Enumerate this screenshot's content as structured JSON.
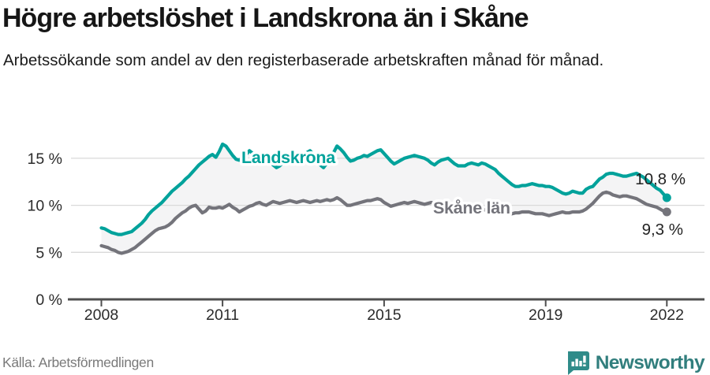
{
  "header": {
    "title": "Högre arbetslöshet i Landskrona än i Skåne",
    "subtitle": "Arbetssökande som andel av den registerbaserade arbetskraften månad för månad."
  },
  "footer": {
    "source": "Källa: Arbetsförmedlingen",
    "brand": "Newsworthy"
  },
  "colors": {
    "landskrona": "#00a29b",
    "skane": "#74747b",
    "fill_between": "#f4f4f5",
    "gridline": "#d9d9d9",
    "axis": "#4f4f4f",
    "tick_text": "#2b2b2b",
    "value_text": "#232323",
    "brand_teal": "#2f8b89"
  },
  "chart_data": {
    "type": "line",
    "x_start": "2008-01",
    "x_interval": "monthly",
    "x_tick_years": [
      2008,
      2011,
      2015,
      2019,
      2022
    ],
    "x_tick_labels": [
      "2008",
      "2011",
      "2015",
      "2019",
      "2022"
    ],
    "y_ticks": [
      0,
      5,
      10,
      15
    ],
    "y_tick_labels": [
      "0 %",
      "5 %",
      "10 %",
      "15 %"
    ],
    "ylim": [
      0,
      17.6
    ],
    "grid": true,
    "legend": "inline-labels",
    "fill_between_series": true,
    "series": [
      {
        "name": "Landskrona",
        "color": "#00a29b",
        "end_value_label": "10,8 %",
        "values": [
          7.6,
          7.5,
          7.3,
          7.1,
          7.0,
          6.9,
          6.9,
          7.0,
          7.1,
          7.2,
          7.5,
          7.8,
          8.1,
          8.5,
          9.0,
          9.4,
          9.7,
          10.0,
          10.3,
          10.7,
          11.1,
          11.5,
          11.8,
          12.1,
          12.4,
          12.8,
          13.1,
          13.5,
          13.9,
          14.3,
          14.6,
          14.9,
          15.2,
          15.4,
          15.1,
          15.7,
          16.5,
          16.3,
          15.8,
          15.3,
          14.9,
          14.8,
          15.1,
          15.4,
          15.8,
          15.5,
          15.1,
          15.0,
          15.1,
          15.3,
          14.8,
          14.3,
          14.0,
          14.2,
          14.6,
          14.9,
          15.1,
          15.3,
          15.1,
          15.2,
          15.4,
          15.6,
          15.8,
          15.4,
          14.9,
          14.3,
          14.0,
          14.5,
          15.0,
          15.6,
          16.3,
          16.0,
          15.6,
          15.1,
          14.7,
          14.8,
          15.0,
          15.1,
          15.3,
          15.2,
          15.4,
          15.6,
          15.8,
          15.9,
          15.5,
          15.1,
          14.7,
          14.4,
          14.6,
          14.8,
          15.0,
          15.1,
          15.2,
          15.3,
          15.2,
          15.1,
          15.0,
          14.8,
          14.5,
          14.3,
          14.6,
          14.8,
          14.9,
          15.0,
          14.7,
          14.4,
          14.2,
          14.2,
          14.2,
          14.4,
          14.5,
          14.4,
          14.3,
          14.5,
          14.4,
          14.2,
          14.0,
          13.8,
          13.4,
          13.1,
          12.8,
          12.5,
          12.2,
          12.0,
          12.0,
          12.1,
          12.1,
          12.2,
          12.3,
          12.2,
          12.1,
          12.1,
          12.0,
          12.0,
          11.9,
          11.7,
          11.5,
          11.3,
          11.2,
          11.3,
          11.5,
          11.4,
          11.3,
          11.3,
          11.7,
          11.9,
          12.0,
          12.4,
          12.8,
          13.0,
          13.3,
          13.4,
          13.4,
          13.3,
          13.2,
          13.1,
          13.1,
          13.2,
          13.3,
          13.4,
          13.2,
          13.0,
          12.7,
          12.4,
          12.1,
          11.8,
          11.6,
          11.2,
          10.8
        ]
      },
      {
        "name": "Skåne län",
        "color": "#74747b",
        "end_value_label": "9,3 %",
        "values": [
          5.7,
          5.6,
          5.5,
          5.3,
          5.2,
          5.0,
          4.9,
          5.0,
          5.1,
          5.3,
          5.5,
          5.8,
          6.1,
          6.4,
          6.7,
          7.0,
          7.3,
          7.5,
          7.6,
          7.7,
          7.9,
          8.2,
          8.6,
          8.9,
          9.2,
          9.4,
          9.7,
          9.9,
          10.0,
          9.6,
          9.2,
          9.4,
          9.8,
          9.7,
          9.7,
          9.8,
          9.7,
          9.9,
          10.1,
          9.8,
          9.6,
          9.3,
          9.5,
          9.7,
          9.9,
          10.0,
          10.2,
          10.3,
          10.1,
          10.0,
          10.2,
          10.4,
          10.3,
          10.2,
          10.3,
          10.4,
          10.5,
          10.4,
          10.3,
          10.4,
          10.5,
          10.4,
          10.3,
          10.4,
          10.5,
          10.4,
          10.5,
          10.6,
          10.5,
          10.6,
          10.8,
          10.6,
          10.3,
          10.0,
          10.0,
          10.1,
          10.2,
          10.3,
          10.4,
          10.5,
          10.5,
          10.6,
          10.7,
          10.6,
          10.3,
          10.1,
          9.9,
          10.0,
          10.1,
          10.2,
          10.3,
          10.2,
          10.3,
          10.4,
          10.3,
          10.2,
          10.1,
          10.2,
          10.3,
          10.2,
          10.1,
          10.0,
          10.1,
          10.2,
          10.1,
          10.0,
          9.9,
          9.8,
          9.7,
          9.7,
          9.8,
          9.7,
          9.6,
          9.6,
          9.5,
          9.5,
          9.4,
          9.4,
          9.3,
          9.3,
          9.2,
          9.2,
          9.1,
          9.2,
          9.2,
          9.3,
          9.3,
          9.3,
          9.2,
          9.1,
          9.1,
          9.1,
          9.0,
          8.9,
          9.0,
          9.1,
          9.2,
          9.3,
          9.2,
          9.2,
          9.3,
          9.3,
          9.3,
          9.4,
          9.6,
          9.9,
          10.2,
          10.6,
          11.0,
          11.3,
          11.4,
          11.3,
          11.1,
          11.0,
          10.9,
          11.0,
          11.0,
          10.9,
          10.8,
          10.7,
          10.5,
          10.3,
          10.1,
          10.0,
          9.9,
          9.8,
          9.6,
          9.4,
          9.3
        ]
      }
    ]
  }
}
